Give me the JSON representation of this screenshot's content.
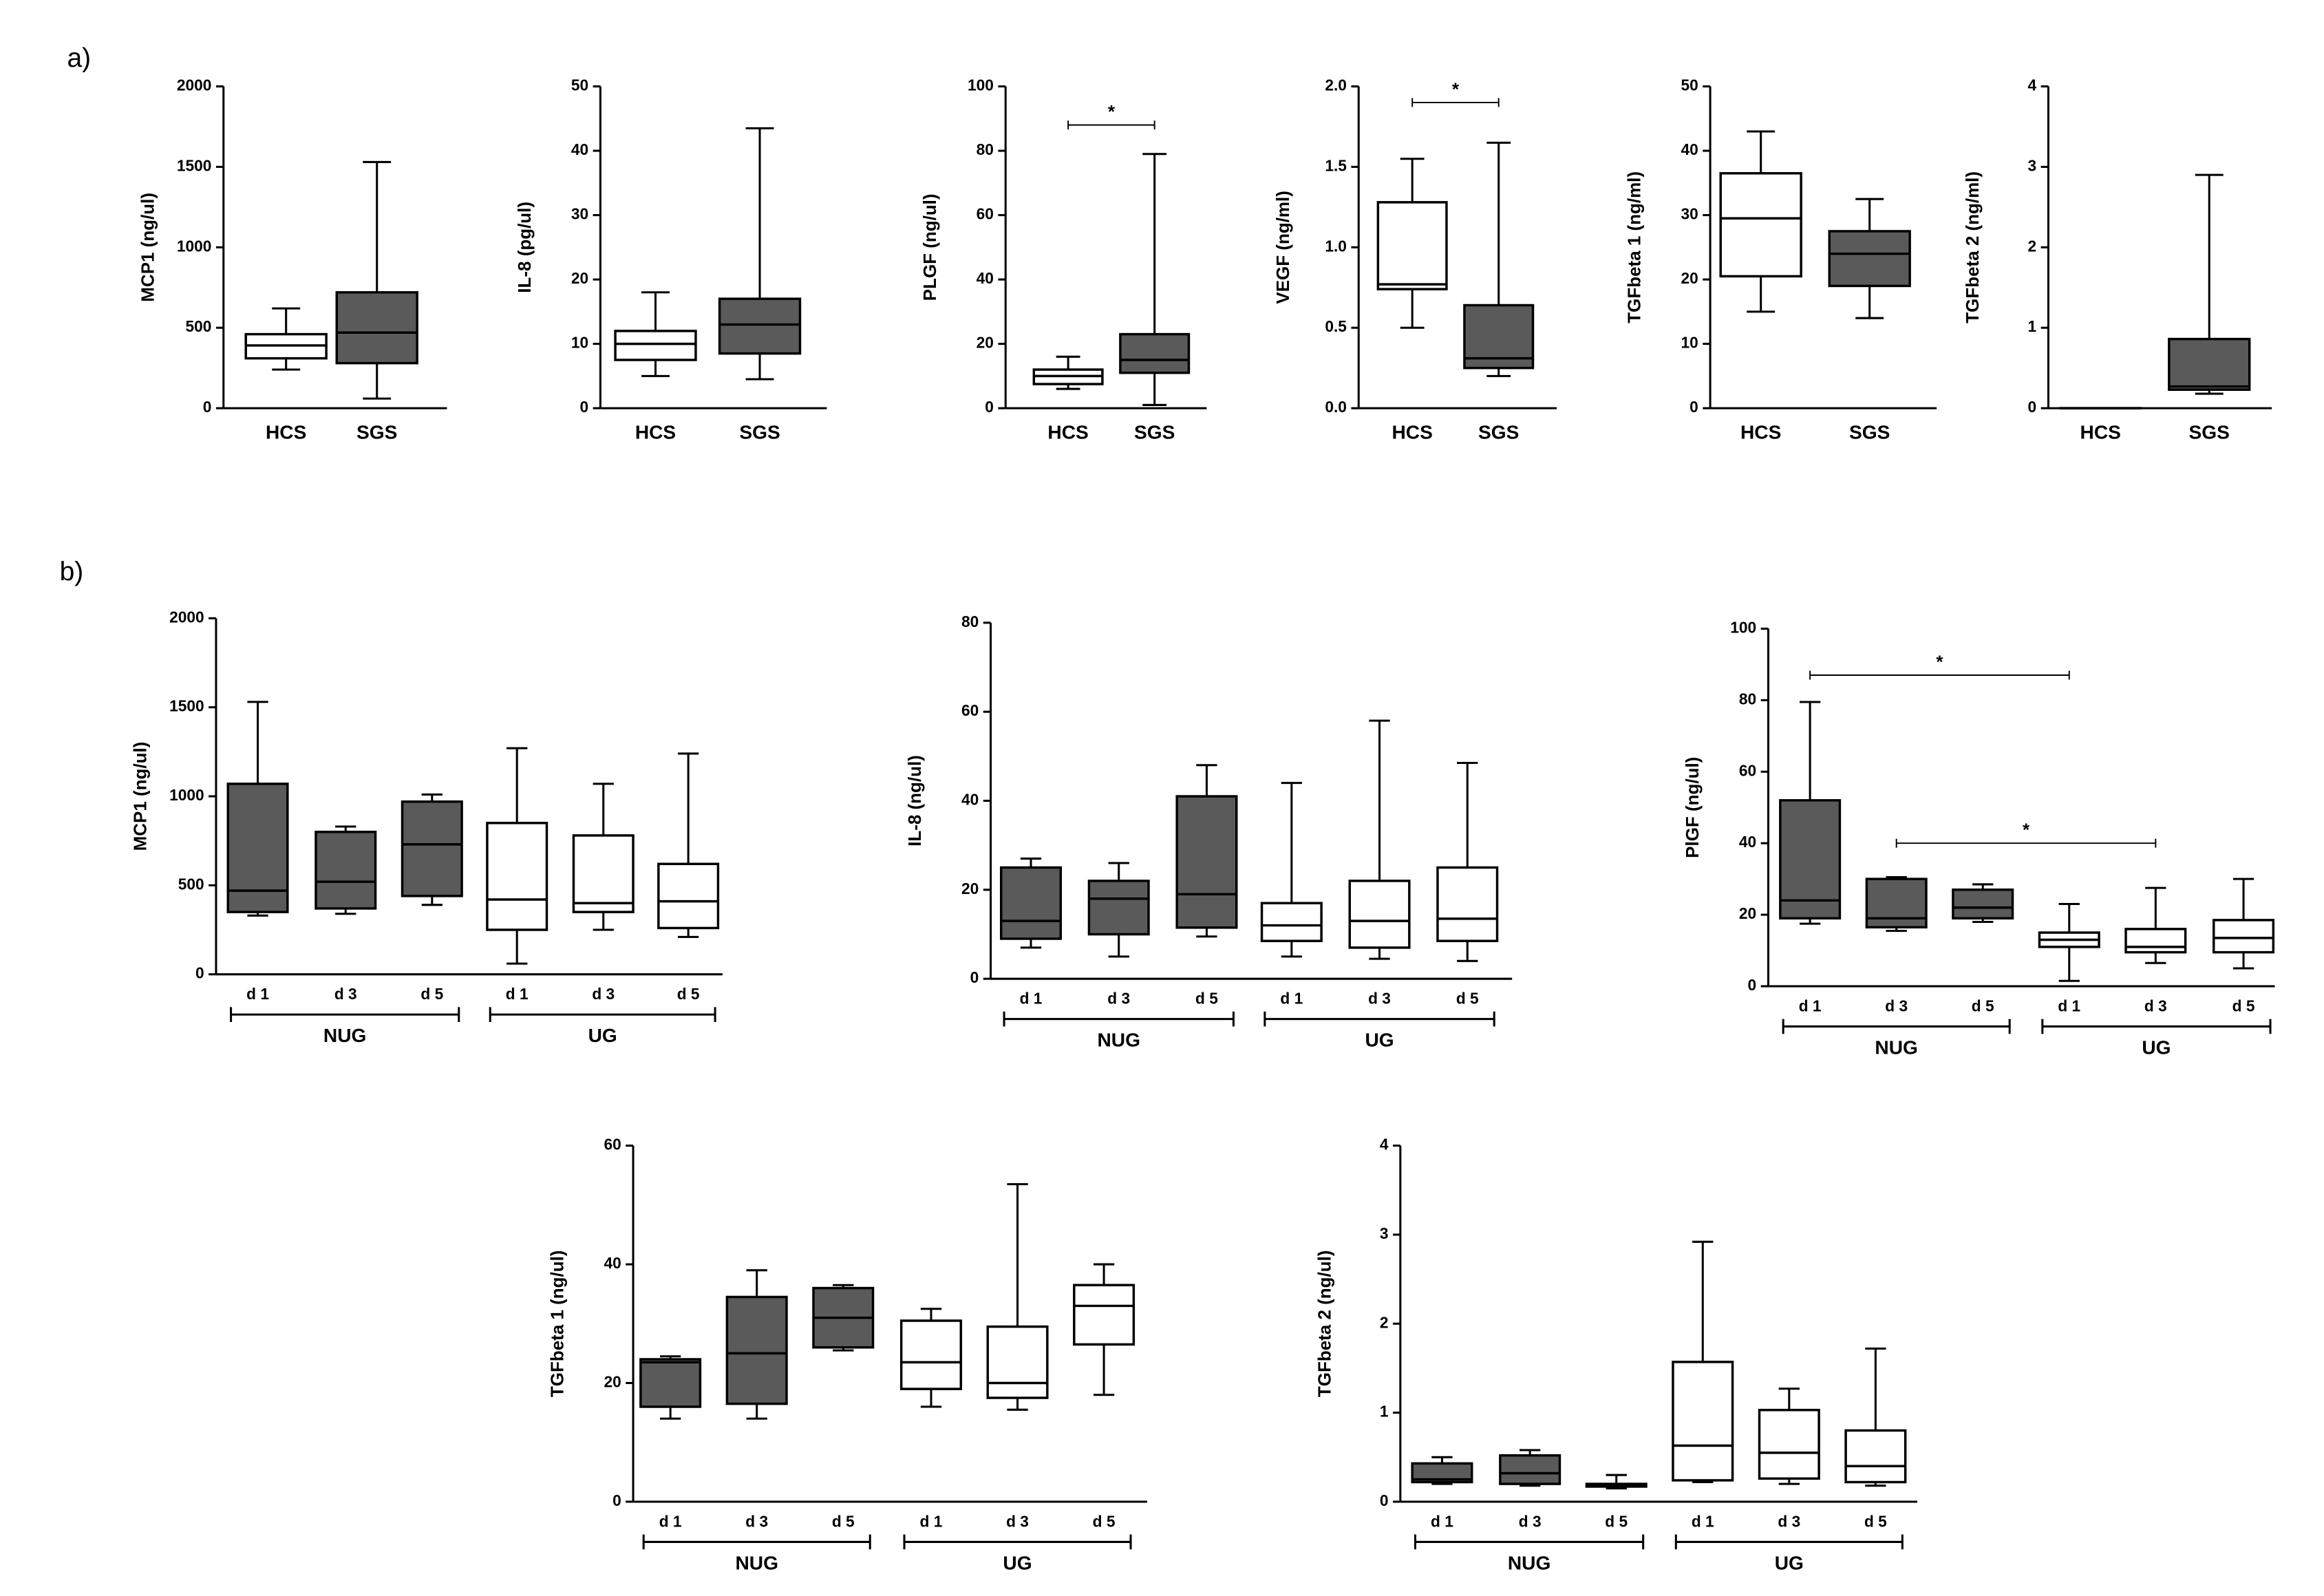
{
  "panel_labels": [
    "a)",
    "b)"
  ],
  "chart_data": [
    {
      "type": "box",
      "ylabel": "MCP1 (ng/ul)",
      "ylim": [
        0,
        2000
      ],
      "yticks": [
        0,
        500,
        1000,
        1500,
        2000
      ],
      "categories": [
        "HCS",
        "SGS"
      ],
      "colors": [
        "#ffffff",
        "#5a5a5a"
      ],
      "boxes": [
        {
          "min": 240,
          "q1": 310,
          "median": 390,
          "q3": 460,
          "max": 620
        },
        {
          "min": 60,
          "q1": 280,
          "median": 470,
          "q3": 720,
          "max": 1530
        }
      ]
    },
    {
      "type": "box",
      "ylabel": "IL-8 (pg/ul)",
      "ylim": [
        0,
        50
      ],
      "yticks": [
        0,
        10,
        20,
        30,
        40,
        50
      ],
      "categories": [
        "HCS",
        "SGS"
      ],
      "colors": [
        "#ffffff",
        "#5a5a5a"
      ],
      "boxes": [
        {
          "min": 5,
          "q1": 7.5,
          "median": 10,
          "q3": 12,
          "max": 18
        },
        {
          "min": 4.5,
          "q1": 8.5,
          "median": 13,
          "q3": 17,
          "max": 43.5
        }
      ]
    },
    {
      "type": "box",
      "ylabel": "PLGF (ng/ul)",
      "ylim": [
        0,
        100
      ],
      "yticks": [
        0,
        20,
        40,
        60,
        80,
        100
      ],
      "categories": [
        "HCS",
        "SGS"
      ],
      "colors": [
        "#ffffff",
        "#5a5a5a"
      ],
      "boxes": [
        {
          "min": 6,
          "q1": 7.5,
          "median": 10,
          "q3": 12,
          "max": 16
        },
        {
          "min": 1,
          "q1": 11,
          "median": 15,
          "q3": 23,
          "max": 79
        }
      ],
      "annotations": [
        {
          "text": "*",
          "between": [
            0,
            1
          ],
          "y": 88
        }
      ]
    },
    {
      "type": "box",
      "ylabel": "VEGF (ng/ml)",
      "ylim": [
        0,
        2
      ],
      "yticks": [
        {
          "value": 0,
          "label": "0.0"
        },
        0.5,
        {
          "value": 1,
          "label": "1.0"
        },
        1.5,
        {
          "value": 2,
          "label": "2.0"
        }
      ],
      "categories": [
        "HCS",
        "SGS"
      ],
      "colors": [
        "#ffffff",
        "#5a5a5a"
      ],
      "boxes": [
        {
          "min": 0.5,
          "q1": 0.74,
          "median": 0.77,
          "q3": 1.28,
          "max": 1.55
        },
        {
          "min": 0.2,
          "q1": 0.25,
          "median": 0.31,
          "q3": 0.64,
          "max": 1.65
        }
      ],
      "annotations": [
        {
          "text": "*",
          "between": [
            0,
            1
          ],
          "y": 1.9
        }
      ]
    },
    {
      "type": "box",
      "ylabel": "TGFbeta 1 (ng/ml)",
      "ylim": [
        0,
        50
      ],
      "yticks": [
        0,
        10,
        20,
        30,
        40,
        50
      ],
      "categories": [
        "HCS",
        "SGS"
      ],
      "colors": [
        "#ffffff",
        "#5a5a5a"
      ],
      "boxes": [
        {
          "min": 15,
          "q1": 20.5,
          "median": 29.5,
          "q3": 36.5,
          "max": 43
        },
        {
          "min": 14,
          "q1": 19,
          "median": 24,
          "q3": 27.5,
          "max": 32.5
        }
      ]
    },
    {
      "type": "box",
      "ylabel": "TGFbeta 2 (ng/ml)",
      "ylim": [
        0,
        4
      ],
      "yticks": [
        0,
        1,
        2,
        3,
        4
      ],
      "categories": [
        "HCS",
        "SGS"
      ],
      "colors": [
        "#ffffff",
        "#5a5a5a"
      ],
      "boxes": [
        {
          "min": 0,
          "q1": 0,
          "median": 0,
          "q3": 0,
          "max": 0
        },
        {
          "min": 0.18,
          "q1": 0.23,
          "median": 0.27,
          "q3": 0.86,
          "max": 2.9
        }
      ]
    },
    {
      "type": "box",
      "ylabel": "MCP1 (ng/ul)",
      "ylim": [
        0,
        2000
      ],
      "yticks": [
        0,
        500,
        1000,
        1500,
        2000
      ],
      "groups": [
        {
          "name": "NUG",
          "color": "#5a5a5a",
          "categories": [
            "d 1",
            "d 3",
            "d 5"
          ],
          "boxes": [
            {
              "min": 330,
              "q1": 350,
              "median": 470,
              "q3": 1070,
              "max": 1530
            },
            {
              "min": 340,
              "q1": 370,
              "median": 520,
              "q3": 800,
              "max": 830
            },
            {
              "min": 390,
              "q1": 440,
              "median": 730,
              "q3": 970,
              "max": 1010
            }
          ]
        },
        {
          "name": "UG",
          "color": "#ffffff",
          "categories": [
            "d 1",
            "d 3",
            "d 5"
          ],
          "boxes": [
            {
              "min": 60,
              "q1": 250,
              "median": 420,
              "q3": 850,
              "max": 1270
            },
            {
              "min": 250,
              "q1": 350,
              "median": 400,
              "q3": 780,
              "max": 1070
            },
            {
              "min": 210,
              "q1": 260,
              "median": 410,
              "q3": 620,
              "max": 1240
            }
          ]
        }
      ]
    },
    {
      "type": "box",
      "ylabel": "IL-8 (ng/ul)",
      "ylim": [
        0,
        80
      ],
      "yticks": [
        0,
        20,
        40,
        60,
        80
      ],
      "groups": [
        {
          "name": "NUG",
          "color": "#5a5a5a",
          "categories": [
            "d 1",
            "d 3",
            "d 5"
          ],
          "boxes": [
            {
              "min": 7,
              "q1": 9,
              "median": 13,
              "q3": 25,
              "max": 27
            },
            {
              "min": 5,
              "q1": 10,
              "median": 18,
              "q3": 22,
              "max": 26
            },
            {
              "min": 9.5,
              "q1": 11.5,
              "median": 19,
              "q3": 41,
              "max": 48
            }
          ]
        },
        {
          "name": "UG",
          "color": "#ffffff",
          "categories": [
            "d 1",
            "d 3",
            "d 5"
          ],
          "boxes": [
            {
              "min": 5,
              "q1": 8.5,
              "median": 12,
              "q3": 17,
              "max": 44
            },
            {
              "min": 4.5,
              "q1": 7,
              "median": 13,
              "q3": 22,
              "max": 58
            },
            {
              "min": 4,
              "q1": 8.5,
              "median": 13.5,
              "q3": 25,
              "max": 48.5
            }
          ]
        }
      ]
    },
    {
      "type": "box",
      "ylabel": "PlGF (ng/ul)",
      "ylim": [
        0,
        100
      ],
      "yticks": [
        0,
        20,
        40,
        60,
        80,
        100
      ],
      "groups": [
        {
          "name": "NUG",
          "color": "#5a5a5a",
          "categories": [
            "d 1",
            "d 3",
            "d 5"
          ],
          "boxes": [
            {
              "min": 17.5,
              "q1": 19,
              "median": 24,
              "q3": 52,
              "max": 79.5
            },
            {
              "min": 15.5,
              "q1": 16.5,
              "median": 19,
              "q3": 30,
              "max": 30.5
            },
            {
              "min": 18,
              "q1": 19,
              "median": 22,
              "q3": 27,
              "max": 28.5
            }
          ]
        },
        {
          "name": "UG",
          "color": "#ffffff",
          "categories": [
            "d 1",
            "d 3",
            "d 5"
          ],
          "boxes": [
            {
              "min": 1.5,
              "q1": 11,
              "median": 13,
              "q3": 15,
              "max": 23
            },
            {
              "min": 6.5,
              "q1": 9.5,
              "median": 11,
              "q3": 16,
              "max": 27.5
            },
            {
              "min": 5,
              "q1": 9.5,
              "median": 13.5,
              "q3": 18.5,
              "max": 30
            }
          ]
        }
      ],
      "annotations": [
        {
          "text": "*",
          "between": [
            0,
            3
          ],
          "y": 87
        },
        {
          "text": "*",
          "between": [
            1,
            4
          ],
          "y": 40
        }
      ]
    },
    {
      "type": "box",
      "ylabel": "TGFbeta 1 (ng/ul)",
      "ylim": [
        0,
        60
      ],
      "yticks": [
        0,
        20,
        40,
        60
      ],
      "groups": [
        {
          "name": "NUG",
          "color": "#5a5a5a",
          "categories": [
            "d 1",
            "d 3",
            "d 5"
          ],
          "boxes": [
            {
              "min": 14,
              "q1": 16,
              "median": 23.5,
              "q3": 24,
              "max": 24.5
            },
            {
              "min": 14,
              "q1": 16.5,
              "median": 25,
              "q3": 34.5,
              "max": 39
            },
            {
              "min": 25.5,
              "q1": 26,
              "median": 31,
              "q3": 36,
              "max": 36.5
            }
          ]
        },
        {
          "name": "UG",
          "color": "#ffffff",
          "categories": [
            "d 1",
            "d 3",
            "d 5"
          ],
          "boxes": [
            {
              "min": 16,
              "q1": 19,
              "median": 23.5,
              "q3": 30.5,
              "max": 32.5
            },
            {
              "min": 15.5,
              "q1": 17.5,
              "median": 20,
              "q3": 29.5,
              "max": 53.5
            },
            {
              "min": 18,
              "q1": 26.5,
              "median": 33,
              "q3": 36.5,
              "max": 40
            }
          ]
        }
      ]
    },
    {
      "type": "box",
      "ylabel": "TGFbeta 2 (ng/ul)",
      "ylim": [
        0,
        4
      ],
      "yticks": [
        0,
        1,
        2,
        3,
        4
      ],
      "groups": [
        {
          "name": "NUG",
          "color": "#5a5a5a",
          "categories": [
            "d 1",
            "d 3",
            "d 5"
          ],
          "boxes": [
            {
              "min": 0.2,
              "q1": 0.22,
              "median": 0.25,
              "q3": 0.43,
              "max": 0.5
            },
            {
              "min": 0.18,
              "q1": 0.2,
              "median": 0.32,
              "q3": 0.52,
              "max": 0.58
            },
            {
              "min": 0.15,
              "q1": 0.17,
              "median": 0.18,
              "q3": 0.2,
              "max": 0.3
            }
          ]
        },
        {
          "name": "UG",
          "color": "#ffffff",
          "categories": [
            "d 1",
            "d 3",
            "d 5"
          ],
          "boxes": [
            {
              "min": 0.22,
              "q1": 0.24,
              "median": 0.63,
              "q3": 1.57,
              "max": 2.92
            },
            {
              "min": 0.2,
              "q1": 0.26,
              "median": 0.55,
              "q3": 1.03,
              "max": 1.27
            },
            {
              "min": 0.18,
              "q1": 0.22,
              "median": 0.4,
              "q3": 0.8,
              "max": 1.72
            }
          ]
        }
      ]
    }
  ]
}
